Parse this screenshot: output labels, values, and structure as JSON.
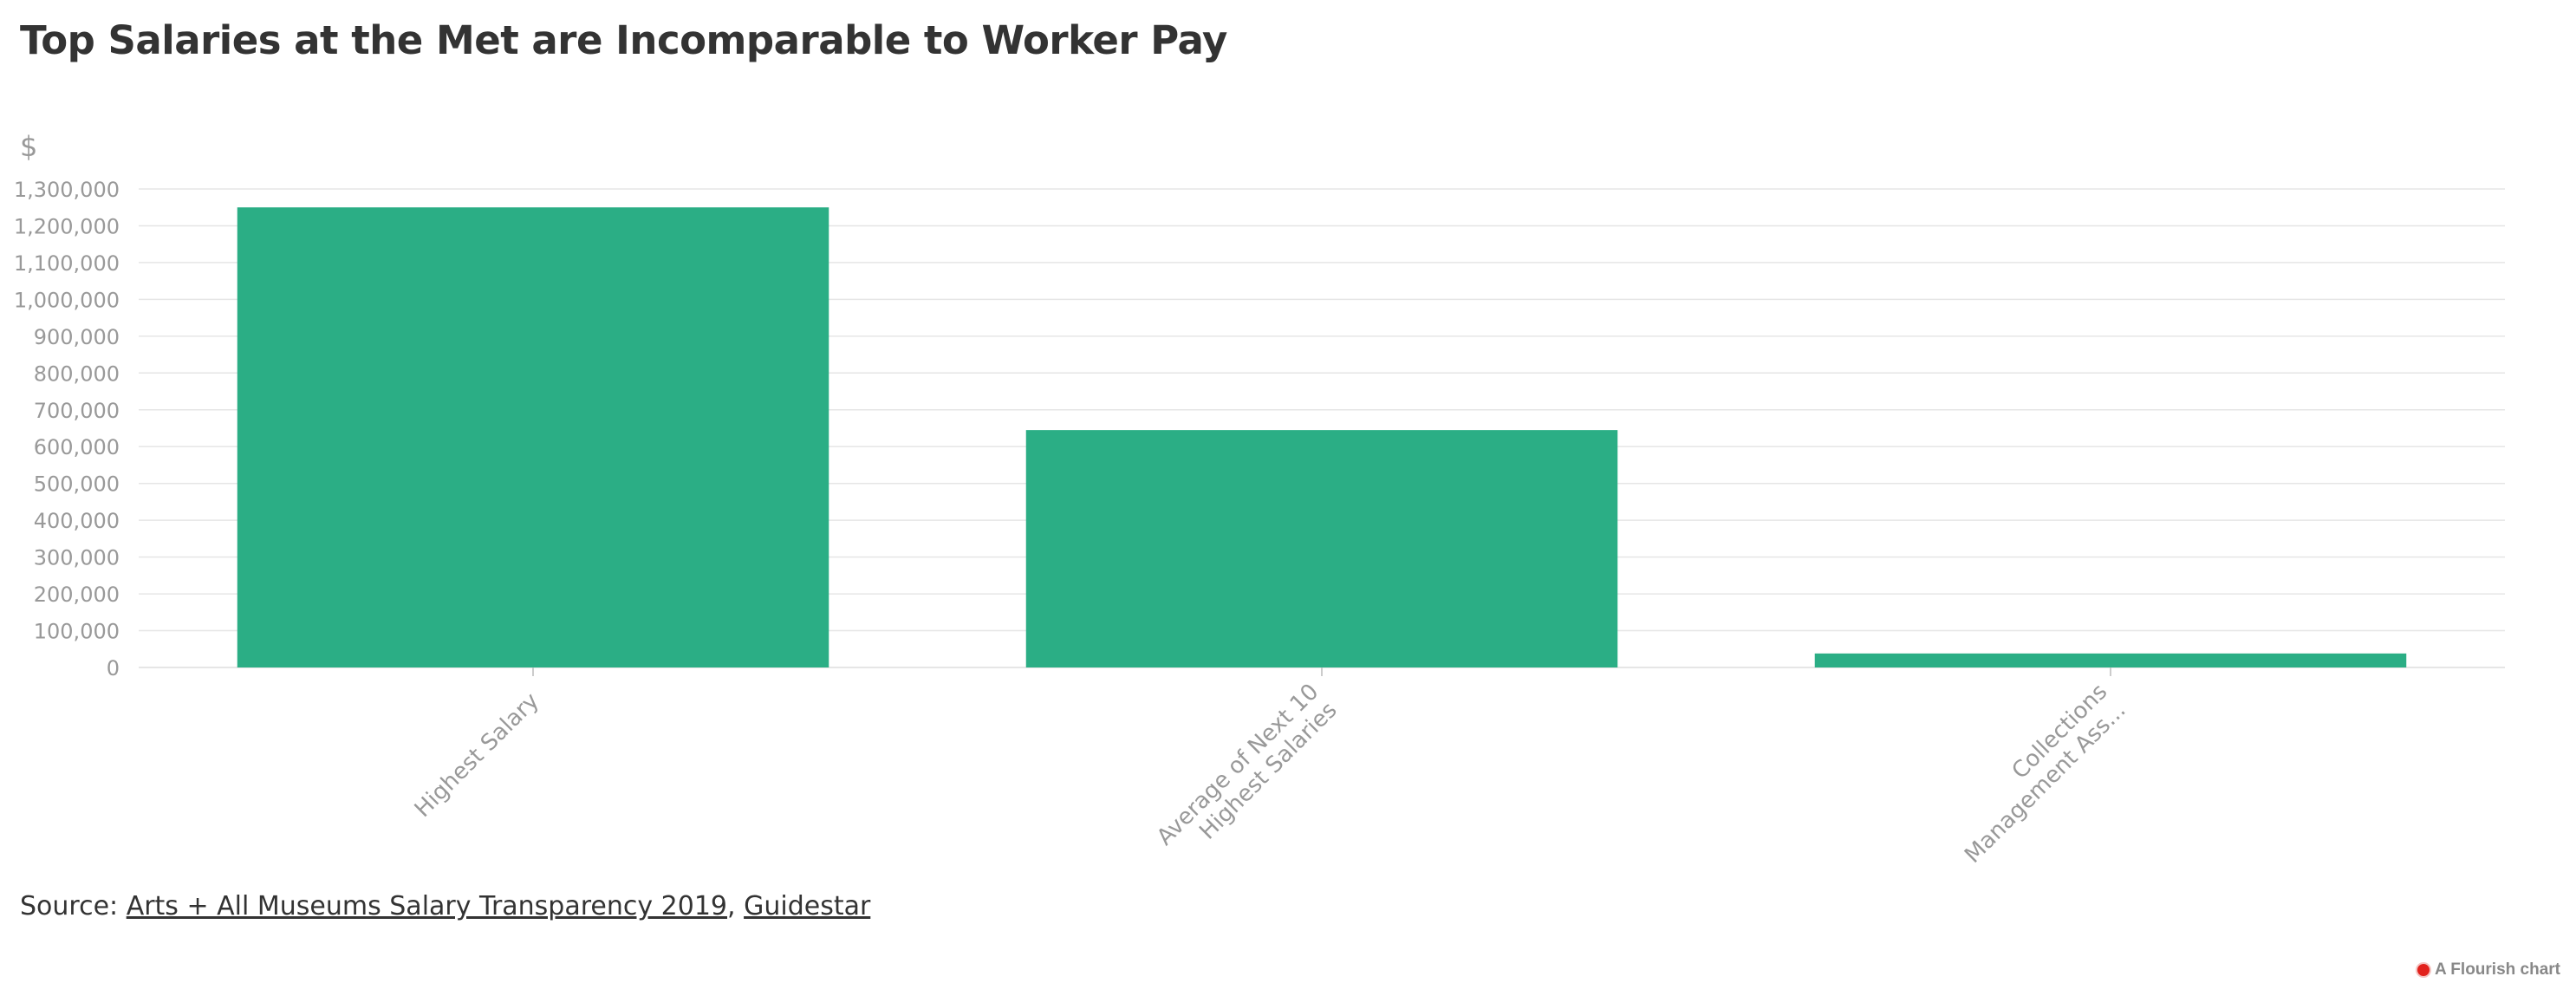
{
  "chart_data": {
    "type": "bar",
    "title": "Top Salaries at the Met are Incomparable to Worker Pay",
    "ylabel": "$",
    "xlabel": "",
    "categories": [
      [
        "Highest Salary"
      ],
      [
        "Average of Next 10",
        "Highest Salaries"
      ],
      [
        "Collections",
        "Management Ass..."
      ]
    ],
    "values": [
      1250000,
      645000,
      38000
    ],
    "ylim": [
      0,
      1300000
    ],
    "yticks": [
      0,
      100000,
      200000,
      300000,
      400000,
      500000,
      600000,
      700000,
      800000,
      900000,
      1000000,
      1100000,
      1200000,
      1300000
    ],
    "ytick_labels": [
      "0",
      "100,000",
      "200,000",
      "300,000",
      "400,000",
      "500,000",
      "600,000",
      "700,000",
      "800,000",
      "900,000",
      "1,000,000",
      "1,100,000",
      "1,200,000",
      "1,300,000"
    ],
    "grid": true,
    "legend": "none",
    "bar_color": "#2bae85"
  },
  "source": {
    "prefix": "Source: ",
    "link1": "Arts + All Museums Salary Transparency 2019",
    "separator": ", ",
    "link2": "Guidestar"
  },
  "credit": {
    "text": "A Flourish chart"
  },
  "colors": {
    "bar": "#2bae85",
    "grid": "#e6e6e6",
    "axis_text": "#999999",
    "title": "#333333"
  }
}
